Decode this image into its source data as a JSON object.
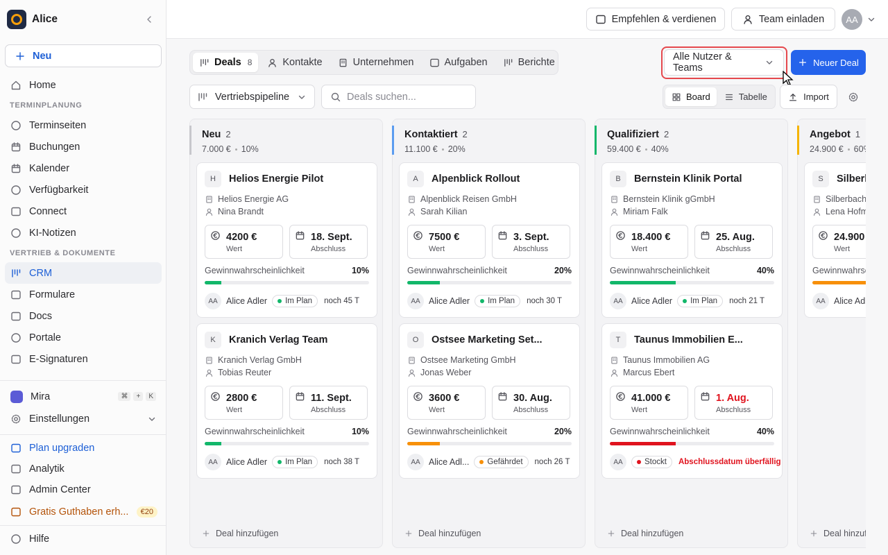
{
  "sidebar": {
    "workspace": "Alice",
    "new_button": "Neu",
    "top_items": [
      {
        "label": "Home"
      }
    ],
    "sections": [
      {
        "title": "TERMINPLANUNG",
        "items": [
          {
            "label": "Terminseiten"
          },
          {
            "label": "Buchungen"
          },
          {
            "label": "Kalender"
          },
          {
            "label": "Verfügbarkeit"
          },
          {
            "label": "Connect"
          },
          {
            "label": "KI-Notizen"
          }
        ]
      },
      {
        "title": "VERTRIEB & DOKUMENTE",
        "items": [
          {
            "label": "CRM",
            "active": true
          },
          {
            "label": "Formulare"
          },
          {
            "label": "Docs"
          },
          {
            "label": "Portale"
          },
          {
            "label": "E-Signaturen"
          }
        ]
      }
    ],
    "assistant": {
      "label": "Mira",
      "shortcut": [
        "⌘",
        "+",
        "K"
      ]
    },
    "settings": "Einstellungen",
    "bottom_items": [
      {
        "label": "Plan upgraden",
        "color": "#1d5fd6"
      },
      {
        "label": "Analytik"
      },
      {
        "label": "Admin Center"
      },
      {
        "label": "Gratis Guthaben erh...",
        "color": "#b45309",
        "badge": "€20"
      }
    ],
    "help": "Hilfe"
  },
  "header": {
    "refer": "Empfehlen & verdienen",
    "invite": "Team einladen",
    "avatar": "AA"
  },
  "toolbar": {
    "tabs": [
      {
        "label": "Deals",
        "count": 8,
        "active": true
      },
      {
        "label": "Kontakte"
      },
      {
        "label": "Unternehmen"
      },
      {
        "label": "Aufgaben"
      },
      {
        "label": "Berichte"
      }
    ],
    "filter": "Alle Nutzer & Teams",
    "new_deal": "Neuer Deal",
    "pipeline": "Vertriebspipeline",
    "search_placeholder": "Deals suchen...",
    "views": [
      {
        "label": "Board",
        "active": true
      },
      {
        "label": "Tabelle"
      }
    ],
    "import": "Import"
  },
  "board": {
    "value_label": "Wert",
    "date_label": "Abschluss",
    "probability_label": "Gewinnwahrscheinlichkeit",
    "add_deal": "Deal hinzufügen",
    "columns": [
      {
        "name": "Neu",
        "count": 2,
        "total": "7.000 €",
        "probability": "10%",
        "color": "#c7c7cc",
        "deals": [
          {
            "initial": "H",
            "title": "Helios Energie Pilot",
            "company": "Helios Energie AG",
            "contact": "Nina Brandt",
            "value": "4200 €",
            "date": "18. Sept.",
            "probability": {
              "value": 10,
              "label": "10%"
            },
            "bar_color": "#12b76a",
            "owner_initials": "AA",
            "owner": "Alice Adler",
            "status": "Im Plan",
            "status_color": "#12b76a",
            "remaining": "noch 45 T"
          },
          {
            "initial": "K",
            "title": "Kranich Verlag Team",
            "company": "Kranich Verlag GmbH",
            "contact": "Tobias Reuter",
            "value": "2800 €",
            "date": "11. Sept.",
            "probability": {
              "value": 10,
              "label": "10%"
            },
            "bar_color": "#12b76a",
            "owner_initials": "AA",
            "owner": "Alice Adler",
            "status": "Im Plan",
            "status_color": "#12b76a",
            "remaining": "noch 38 T"
          }
        ]
      },
      {
        "name": "Kontaktiert",
        "count": 2,
        "total": "11.100 €",
        "probability": "20%",
        "color": "#5b9cf0",
        "deals": [
          {
            "initial": "A",
            "title": "Alpenblick Rollout",
            "company": "Alpenblick Reisen GmbH",
            "contact": "Sarah Kilian",
            "value": "7500 €",
            "date": "3. Sept.",
            "probability": {
              "value": 20,
              "label": "20%"
            },
            "bar_color": "#12b76a",
            "owner_initials": "AA",
            "owner": "Alice Adler",
            "status": "Im Plan",
            "status_color": "#12b76a",
            "remaining": "noch 30 T"
          },
          {
            "initial": "O",
            "title": "Ostsee Marketing Set...",
            "company": "Ostsee Marketing GmbH",
            "contact": "Jonas Weber",
            "value": "3600 €",
            "date": "30. Aug.",
            "probability": {
              "value": 20,
              "label": "20%"
            },
            "bar_color": "#f79009",
            "owner_initials": "AA",
            "owner": "Alice Adl...",
            "status": "Gefährdet",
            "status_color": "#f79009",
            "remaining": "noch 26 T"
          }
        ]
      },
      {
        "name": "Qualifiziert",
        "count": 2,
        "total": "59.400 €",
        "probability": "40%",
        "color": "#12b76a",
        "deals": [
          {
            "initial": "B",
            "title": "Bernstein Klinik Portal",
            "company": "Bernstein Klinik gGmbH",
            "contact": "Miriam Falk",
            "value": "18.400 €",
            "date": "25. Aug.",
            "probability": {
              "value": 40,
              "label": "40%"
            },
            "bar_color": "#12b76a",
            "owner_initials": "AA",
            "owner": "Alice Adler",
            "status": "Im Plan",
            "status_color": "#12b76a",
            "remaining": "noch 21 T"
          },
          {
            "initial": "T",
            "title": "Taunus Immobilien E...",
            "company": "Taunus Immobilien AG",
            "contact": "Marcus Ebert",
            "value": "41.000 €",
            "date": "1. Aug.",
            "date_color": "#e0131e",
            "probability": {
              "value": 40,
              "label": "40%"
            },
            "bar_color": "#e0131e",
            "owner_initials": "AA",
            "status": "Stockt",
            "status_color": "#e0131e",
            "remaining": "Abschlussdatum überfällig",
            "remaining_color": "#e0131e"
          }
        ]
      },
      {
        "name": "Angebot",
        "count": 1,
        "total": "24.900 €",
        "probability": "60%",
        "color": "#f5b400",
        "deals": [
          {
            "initial": "S",
            "title": "Silberbach",
            "company": "Silberbach",
            "contact": "Lena Hofm",
            "value": "24.900",
            "probability": {
              "value": 60
            },
            "bar_color": "#f79009",
            "owner_initials": "AA",
            "owner": "Alice Adl"
          }
        ]
      }
    ]
  }
}
